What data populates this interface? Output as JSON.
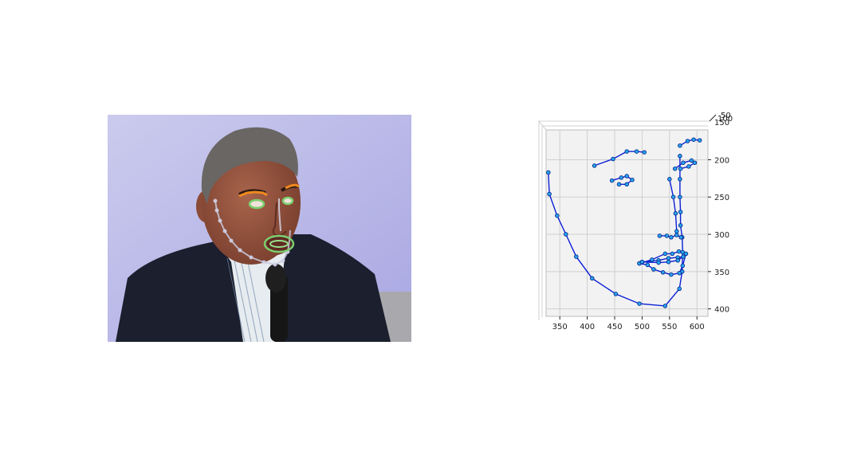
{
  "photo": {
    "colors": {
      "background": "#c5c4ee",
      "suit": "#1c2030",
      "shirt": "#e8eef0",
      "skin": "#9a5a44",
      "hair": "#6c6866",
      "mic": "#161616",
      "jaw_landmarks": "#c8c8dc",
      "brow_landmarks": "#f08a1e",
      "inner_landmarks": "#7ccf6f"
    }
  },
  "chart_data": {
    "type": "scatter",
    "projection": "3d",
    "view": "top-down",
    "title": "",
    "xlabel": "",
    "ylabel": "",
    "zlabel": "",
    "xlim": [
      325,
      620
    ],
    "ylim": [
      410,
      160
    ],
    "xticks": [
      350,
      400,
      450,
      500,
      550,
      600
    ],
    "yticks": [
      200,
      250,
      300,
      350,
      400
    ],
    "ztick_labels": [
      "50",
      "100",
      "150"
    ],
    "grid": true,
    "colors": {
      "line": "#0b1fd6",
      "marker_fill": "#27a6f2",
      "marker_edge": "#0a2a8a",
      "pane": "#f2f2f2",
      "grid": "#cfcfcf"
    },
    "segments": [
      {
        "name": "",
        "points": [
          [
            329,
            217
          ],
          [
            331,
            246
          ],
          [
            345,
            275
          ],
          [
            361,
            300
          ],
          [
            380,
            330
          ],
          [
            409,
            359
          ],
          [
            452,
            380
          ],
          [
            495,
            393
          ],
          [
            542,
            396
          ],
          [
            568,
            373
          ],
          [
            573,
            350
          ],
          [
            574,
            324
          ],
          [
            573,
            304
          ],
          [
            570,
            288
          ],
          [
            570,
            270
          ],
          [
            569,
            250
          ],
          [
            569,
            226
          ],
          [
            569,
            195
          ]
        ]
      },
      {
        "name": "",
        "points": [
          [
            413,
            208
          ],
          [
            447,
            199
          ],
          [
            472,
            189
          ],
          [
            490,
            189
          ],
          [
            504,
            190
          ]
        ]
      },
      {
        "name": "",
        "points": [
          [
            569,
            181
          ],
          [
            583,
            175
          ],
          [
            594,
            173
          ],
          [
            605,
            174
          ]
        ]
      },
      {
        "name": "",
        "points": [
          [
            550,
            226
          ],
          [
            557,
            250
          ],
          [
            561,
            272
          ],
          [
            563,
            296
          ]
        ]
      },
      {
        "name": "",
        "points": [
          [
            532,
            302
          ],
          [
            545,
            302
          ],
          [
            553,
            304
          ],
          [
            563,
            301
          ],
          [
            571,
            304
          ]
        ]
      },
      {
        "name": "",
        "points": [
          [
            445,
            228
          ],
          [
            462,
            224
          ],
          [
            472,
            222
          ],
          [
            482,
            227
          ],
          [
            472,
            233
          ],
          [
            458,
            233
          ]
        ]
      },
      {
        "name": "",
        "points": [
          [
            560,
            212
          ],
          [
            575,
            204
          ],
          [
            590,
            201
          ],
          [
            596,
            204
          ],
          [
            585,
            209
          ],
          [
            570,
            212
          ]
        ]
      },
      {
        "name": "",
        "points": [
          [
            495,
            339
          ],
          [
            518,
            334
          ],
          [
            542,
            326
          ],
          [
            555,
            326
          ],
          [
            567,
            323
          ],
          [
            580,
            326
          ],
          [
            574,
            342
          ],
          [
            568,
            352
          ],
          [
            553,
            354
          ],
          [
            538,
            351
          ],
          [
            521,
            347
          ],
          [
            510,
            341
          ],
          [
            495,
            339
          ]
        ]
      },
      {
        "name": "",
        "points": [
          [
            500,
            337
          ],
          [
            530,
            335
          ],
          [
            548,
            332
          ],
          [
            565,
            331
          ],
          [
            575,
            330
          ],
          [
            565,
            335
          ],
          [
            548,
            337
          ],
          [
            530,
            338
          ],
          [
            500,
            337
          ]
        ]
      }
    ]
  }
}
